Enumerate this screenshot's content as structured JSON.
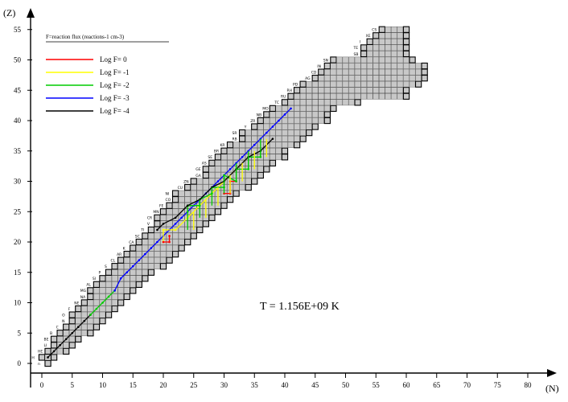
{
  "chart_data": {
    "type": "heatmap",
    "xlabel": "(N)",
    "ylabel": "(Z)",
    "xlim": [
      0,
      85
    ],
    "ylim": [
      0,
      55
    ],
    "x_ticks": [
      "0",
      "5",
      "10",
      "15",
      "20",
      "25",
      "30",
      "35",
      "40",
      "45",
      "50",
      "55",
      "60",
      "65",
      "70",
      "75",
      "80"
    ],
    "y_ticks": [
      "0",
      "5",
      "10",
      "15",
      "20",
      "25",
      "30",
      "35",
      "40",
      "45",
      "50",
      "55"
    ],
    "legend": {
      "title": "F=reaction flux (reactions-1 cm-3)",
      "entries": [
        {
          "label": "Log F=  0",
          "color": "#ff0000"
        },
        {
          "label": "Log F= -1",
          "color": "#ffff00"
        },
        {
          "label": "Log F= -2",
          "color": "#00cc00"
        },
        {
          "label": "Log F= -3",
          "color": "#0000ff"
        },
        {
          "label": "Log F= -4",
          "color": "#000000"
        }
      ]
    },
    "annotation": "T =  1.156E+09  K",
    "isotope_rows": [
      {
        "z": 0,
        "n": [
          1,
          1
        ]
      },
      {
        "z": 1,
        "n": [
          0,
          2
        ]
      },
      {
        "z": 2,
        "n": [
          1,
          4
        ]
      },
      {
        "z": 3,
        "n": [
          2,
          5
        ]
      },
      {
        "z": 4,
        "n": [
          2,
          6
        ]
      },
      {
        "z": 5,
        "n": [
          3,
          8
        ]
      },
      {
        "z": 6,
        "n": [
          4,
          9
        ]
      },
      {
        "z": 7,
        "n": [
          5,
          10
        ]
      },
      {
        "z": 8,
        "n": [
          5,
          11
        ]
      },
      {
        "z": 9,
        "n": [
          6,
          12
        ]
      },
      {
        "z": 10,
        "n": [
          7,
          13
        ]
      },
      {
        "z": 11,
        "n": [
          8,
          14
        ]
      },
      {
        "z": 12,
        "n": [
          8,
          15
        ]
      },
      {
        "z": 13,
        "n": [
          9,
          16
        ]
      },
      {
        "z": 14,
        "n": [
          10,
          17
        ]
      },
      {
        "z": 15,
        "n": [
          11,
          18
        ]
      },
      {
        "z": 16,
        "n": [
          12,
          20
        ]
      },
      {
        "z": 17,
        "n": [
          13,
          21
        ]
      },
      {
        "z": 18,
        "n": [
          14,
          22
        ]
      },
      {
        "z": 19,
        "n": [
          15,
          23
        ]
      },
      {
        "z": 20,
        "n": [
          16,
          24
        ]
      },
      {
        "z": 21,
        "n": [
          17,
          25
        ]
      },
      {
        "z": 22,
        "n": [
          18,
          26
        ]
      },
      {
        "z": 23,
        "n": [
          19,
          27
        ]
      },
      {
        "z": 24,
        "n": [
          19,
          28
        ]
      },
      {
        "z": 25,
        "n": [
          20,
          29
        ]
      },
      {
        "z": 26,
        "n": [
          21,
          30
        ]
      },
      {
        "z": 27,
        "n": [
          22,
          31
        ]
      },
      {
        "z": 28,
        "n": [
          22,
          32
        ]
      },
      {
        "z": 29,
        "n": [
          24,
          34
        ]
      },
      {
        "z": 30,
        "n": [
          25,
          35
        ]
      },
      {
        "z": 31,
        "n": [
          27,
          36
        ]
      },
      {
        "z": 32,
        "n": [
          27,
          37
        ]
      },
      {
        "z": 33,
        "n": [
          28,
          38
        ]
      },
      {
        "z": 34,
        "n": [
          29,
          40
        ]
      },
      {
        "z": 35,
        "n": [
          30,
          40
        ]
      },
      {
        "z": 36,
        "n": [
          31,
          42
        ]
      },
      {
        "z": 37,
        "n": [
          33,
          43
        ]
      },
      {
        "z": 38,
        "n": [
          33,
          44
        ]
      },
      {
        "z": 39,
        "n": [
          35,
          45
        ]
      },
      {
        "z": 40,
        "n": [
          36,
          47
        ]
      },
      {
        "z": 41,
        "n": [
          37,
          47
        ]
      },
      {
        "z": 42,
        "n": [
          38,
          48
        ]
      },
      {
        "z": 43,
        "n": [
          40,
          52
        ]
      },
      {
        "z": 44,
        "n": [
          41,
          60
        ]
      },
      {
        "z": 45,
        "n": [
          42,
          60
        ]
      },
      {
        "z": 46,
        "n": [
          43,
          62
        ]
      },
      {
        "z": 47,
        "n": [
          45,
          63
        ]
      },
      {
        "z": 48,
        "n": [
          46,
          63
        ]
      },
      {
        "z": 49,
        "n": [
          47,
          63
        ]
      },
      {
        "z": 50,
        "n": [
          48,
          61
        ]
      },
      {
        "z": 51,
        "n": [
          53,
          60
        ]
      },
      {
        "z": 52,
        "n": [
          53,
          60
        ]
      },
      {
        "z": 53,
        "n": [
          54,
          60
        ]
      },
      {
        "z": 54,
        "n": [
          55,
          60
        ]
      },
      {
        "z": 55,
        "n": [
          56,
          60
        ]
      }
    ],
    "element_labels": [
      {
        "z": 0,
        "text": "n"
      },
      {
        "z": 1,
        "text": "H"
      },
      {
        "z": 2,
        "text": "HE"
      },
      {
        "z": 3,
        "text": "LI"
      },
      {
        "z": 4,
        "text": "BE"
      },
      {
        "z": 5,
        "text": "B"
      },
      {
        "z": 6,
        "text": "C"
      },
      {
        "z": 7,
        "text": "N"
      },
      {
        "z": 8,
        "text": "O"
      },
      {
        "z": 9,
        "text": "F"
      },
      {
        "z": 10,
        "text": "NE"
      },
      {
        "z": 11,
        "text": "NA"
      },
      {
        "z": 12,
        "text": "MG"
      },
      {
        "z": 13,
        "text": "AL"
      },
      {
        "z": 14,
        "text": "SI"
      },
      {
        "z": 15,
        "text": "P"
      },
      {
        "z": 16,
        "text": "S"
      },
      {
        "z": 17,
        "text": "CL"
      },
      {
        "z": 18,
        "text": "AR"
      },
      {
        "z": 19,
        "text": "K"
      },
      {
        "z": 20,
        "text": "CA"
      },
      {
        "z": 21,
        "text": "SC"
      },
      {
        "z": 22,
        "text": "TI"
      },
      {
        "z": 23,
        "text": "V"
      },
      {
        "z": 24,
        "text": "CR"
      },
      {
        "z": 25,
        "text": "MN"
      },
      {
        "z": 26,
        "text": "FE"
      },
      {
        "z": 27,
        "text": "CO"
      },
      {
        "z": 28,
        "text": "NI"
      },
      {
        "z": 29,
        "text": "CU"
      },
      {
        "z": 30,
        "text": "ZN"
      },
      {
        "z": 31,
        "text": "GA"
      },
      {
        "z": 32,
        "text": "GE"
      },
      {
        "z": 33,
        "text": "AS"
      },
      {
        "z": 34,
        "text": "SE"
      },
      {
        "z": 35,
        "text": "BR"
      },
      {
        "z": 36,
        "text": "KR"
      },
      {
        "z": 37,
        "text": "RB"
      },
      {
        "z": 38,
        "text": "SR"
      },
      {
        "z": 39,
        "text": "Y"
      },
      {
        "z": 40,
        "text": "ZR"
      },
      {
        "z": 41,
        "text": "NB"
      },
      {
        "z": 42,
        "text": "MO"
      },
      {
        "z": 43,
        "text": "TC"
      },
      {
        "z": 44,
        "text": "RU"
      },
      {
        "z": 45,
        "text": "RH"
      },
      {
        "z": 46,
        "text": "PD"
      },
      {
        "z": 47,
        "text": "AG"
      },
      {
        "z": 48,
        "text": "CD"
      },
      {
        "z": 49,
        "text": "IN"
      },
      {
        "z": 50,
        "text": "SN"
      },
      {
        "z": 51,
        "text": "SB"
      },
      {
        "z": 52,
        "text": "TE"
      },
      {
        "z": 53,
        "text": "I"
      },
      {
        "z": 54,
        "text": "XE"
      },
      {
        "z": 55,
        "text": "CS"
      }
    ],
    "flux_paths": [
      {
        "color": "#000000",
        "points": [
          [
            1,
            1
          ],
          [
            2,
            2
          ],
          [
            3,
            3
          ],
          [
            4,
            4
          ],
          [
            5,
            5
          ],
          [
            6,
            6
          ],
          [
            7,
            7
          ],
          [
            8,
            8
          ]
        ]
      },
      {
        "color": "#00cc00",
        "points": [
          [
            8,
            8
          ],
          [
            9,
            9
          ],
          [
            10,
            10
          ],
          [
            11,
            11
          ],
          [
            12,
            12
          ]
        ]
      },
      {
        "color": "#0000ff",
        "points": [
          [
            12,
            12
          ],
          [
            13,
            14
          ],
          [
            14,
            15
          ],
          [
            15,
            16
          ],
          [
            16,
            17
          ],
          [
            17,
            18
          ],
          [
            18,
            19
          ],
          [
            19,
            20
          ],
          [
            20,
            21
          ],
          [
            21,
            22
          ],
          [
            22,
            23
          ],
          [
            23,
            24
          ],
          [
            24,
            25
          ],
          [
            25,
            26
          ],
          [
            26,
            27
          ],
          [
            27,
            28
          ],
          [
            28,
            29
          ],
          [
            29,
            30
          ],
          [
            30,
            31
          ],
          [
            31,
            32
          ],
          [
            32,
            33
          ],
          [
            33,
            34
          ],
          [
            34,
            35
          ],
          [
            35,
            36
          ],
          [
            36,
            37
          ],
          [
            37,
            38
          ],
          [
            38,
            39
          ],
          [
            39,
            40
          ],
          [
            40,
            41
          ],
          [
            41,
            42
          ]
        ]
      },
      {
        "color": "#ffff00",
        "points": [
          [
            20,
            20
          ],
          [
            20,
            22
          ],
          [
            22,
            22
          ],
          [
            24,
            24
          ],
          [
            26,
            26
          ],
          [
            28,
            28
          ],
          [
            30,
            30
          ],
          [
            32,
            32
          ],
          [
            34,
            34
          ]
        ]
      },
      {
        "color": "#ff0000",
        "points": [
          [
            20,
            20
          ],
          [
            21,
            20
          ],
          [
            21,
            21
          ]
        ]
      },
      {
        "color": "#ff0000",
        "points": [
          [
            30,
            28
          ],
          [
            31,
            28
          ],
          [
            31,
            30
          ],
          [
            32,
            30
          ]
        ]
      },
      {
        "color": "#00cc00",
        "points": [
          [
            24,
            25
          ],
          [
            24,
            26
          ],
          [
            26,
            26
          ],
          [
            26,
            27
          ],
          [
            28,
            28
          ],
          [
            28,
            29
          ],
          [
            30,
            29
          ],
          [
            30,
            31
          ],
          [
            32,
            30
          ],
          [
            32,
            32
          ],
          [
            34,
            32
          ],
          [
            34,
            34
          ],
          [
            36,
            34
          ],
          [
            36,
            35
          ]
        ]
      },
      {
        "color": "#000000",
        "points": [
          [
            19,
            22
          ],
          [
            20,
            23
          ],
          [
            22,
            24
          ],
          [
            24,
            26
          ],
          [
            26,
            27
          ],
          [
            28,
            29
          ],
          [
            30,
            30
          ],
          [
            32,
            32
          ],
          [
            34,
            34
          ],
          [
            36,
            35
          ],
          [
            38,
            37
          ]
        ]
      }
    ],
    "flux_verticals": [
      {
        "color": "#ffff00",
        "n": [
          25,
          27,
          29,
          31,
          33,
          35,
          37
        ],
        "z_from": [
          22,
          24,
          26,
          28,
          30,
          32,
          34
        ],
        "z_to": [
          25,
          27,
          29,
          31,
          33,
          35,
          37
        ]
      },
      {
        "color": "#00cc00",
        "n": [
          24,
          26,
          28,
          30,
          32,
          34,
          36
        ],
        "z_from": [
          22,
          24,
          26,
          28,
          30,
          32,
          34
        ],
        "z_to": [
          25,
          27,
          29,
          31,
          33,
          35,
          37
        ]
      }
    ]
  }
}
